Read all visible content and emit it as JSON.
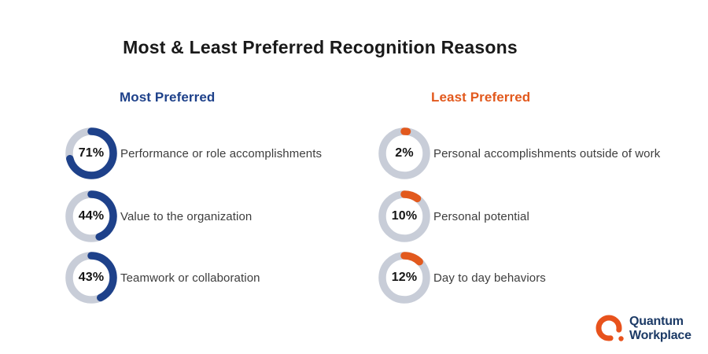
{
  "title": "Most & Least Preferred Recognition Reasons",
  "colors": {
    "navy_accent": "#1e418a",
    "orange_accent": "#e2591d",
    "donut_track": "#c8cdd8",
    "title_text": "#191919",
    "label_text": "#3d3d3d",
    "logo_navy": "#1c3a66",
    "logo_orange": "#e8521c"
  },
  "logo": {
    "line1": "Quantum",
    "line2": "Workplace"
  },
  "chart_data": {
    "type": "pie",
    "variant": "donut-per-item, fill clockwise from top, rounded caps",
    "title": "Most & Least Preferred Recognition Reasons",
    "unit": "%",
    "track_color": "#c8cdd8",
    "groups": [
      {
        "name": "Most Preferred",
        "color": "#1e418a",
        "items": [
          {
            "label": "Performance or role accomplishments",
            "value": 71,
            "display": "71%"
          },
          {
            "label": "Value to the organization",
            "value": 44,
            "display": "44%"
          },
          {
            "label": "Teamwork or collaboration",
            "value": 43,
            "display": "43%"
          }
        ]
      },
      {
        "name": "Least Preferred",
        "color": "#e2591d",
        "items": [
          {
            "label": "Personal accomplishments outside of work",
            "value": 2,
            "display": "2%"
          },
          {
            "label": "Personal potential",
            "value": 10,
            "display": "10%"
          },
          {
            "label": "Day to day behaviors",
            "value": 12,
            "display": "12%"
          }
        ]
      }
    ]
  }
}
